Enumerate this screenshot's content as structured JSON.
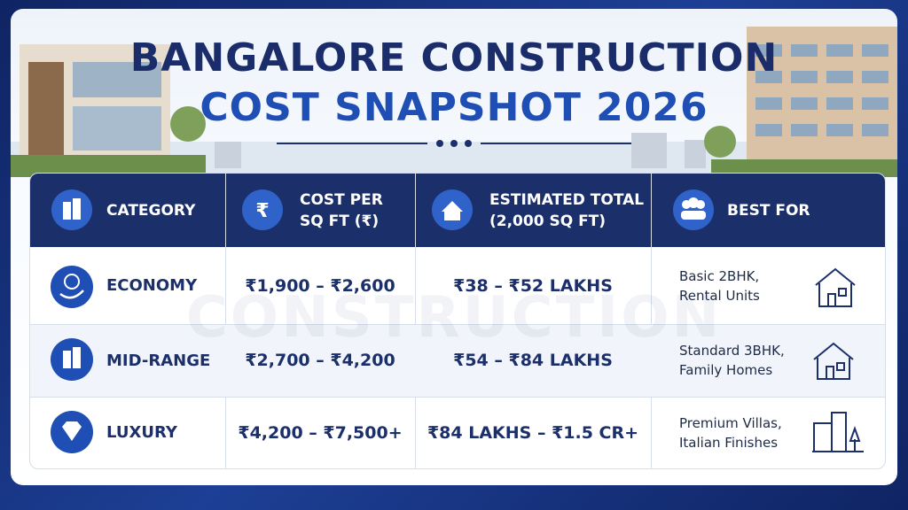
{
  "header": {
    "title_line1": "BANGALORE CONSTRUCTION",
    "title_line2": "COST SNAPSHOT 2026"
  },
  "watermark": "CONSTRUCTION",
  "table": {
    "columns": [
      "CATEGORY",
      "COST PER\nSQ FT (₹)",
      "ESTIMATED TOTAL\n(2,000 SQ FT)",
      "BEST FOR"
    ],
    "rows": [
      [
        "ECONOMY",
        "₹1,900 – ₹2,600",
        "₹38 – ₹52 LAKHS",
        "Basic 2BHK,\nRental Units"
      ],
      [
        "MID-RANGE",
        "₹2,700 – ₹4,200",
        "₹54 – ₹84 LAKHS",
        "Standard 3BHK,\nFamily Homes"
      ],
      [
        "LUXURY",
        "₹4,200 – ₹7,500+",
        "₹84 LAKHS – ₹1.5 CR+",
        "Premium Villas,\nItalian Finishes"
      ]
    ]
  }
}
